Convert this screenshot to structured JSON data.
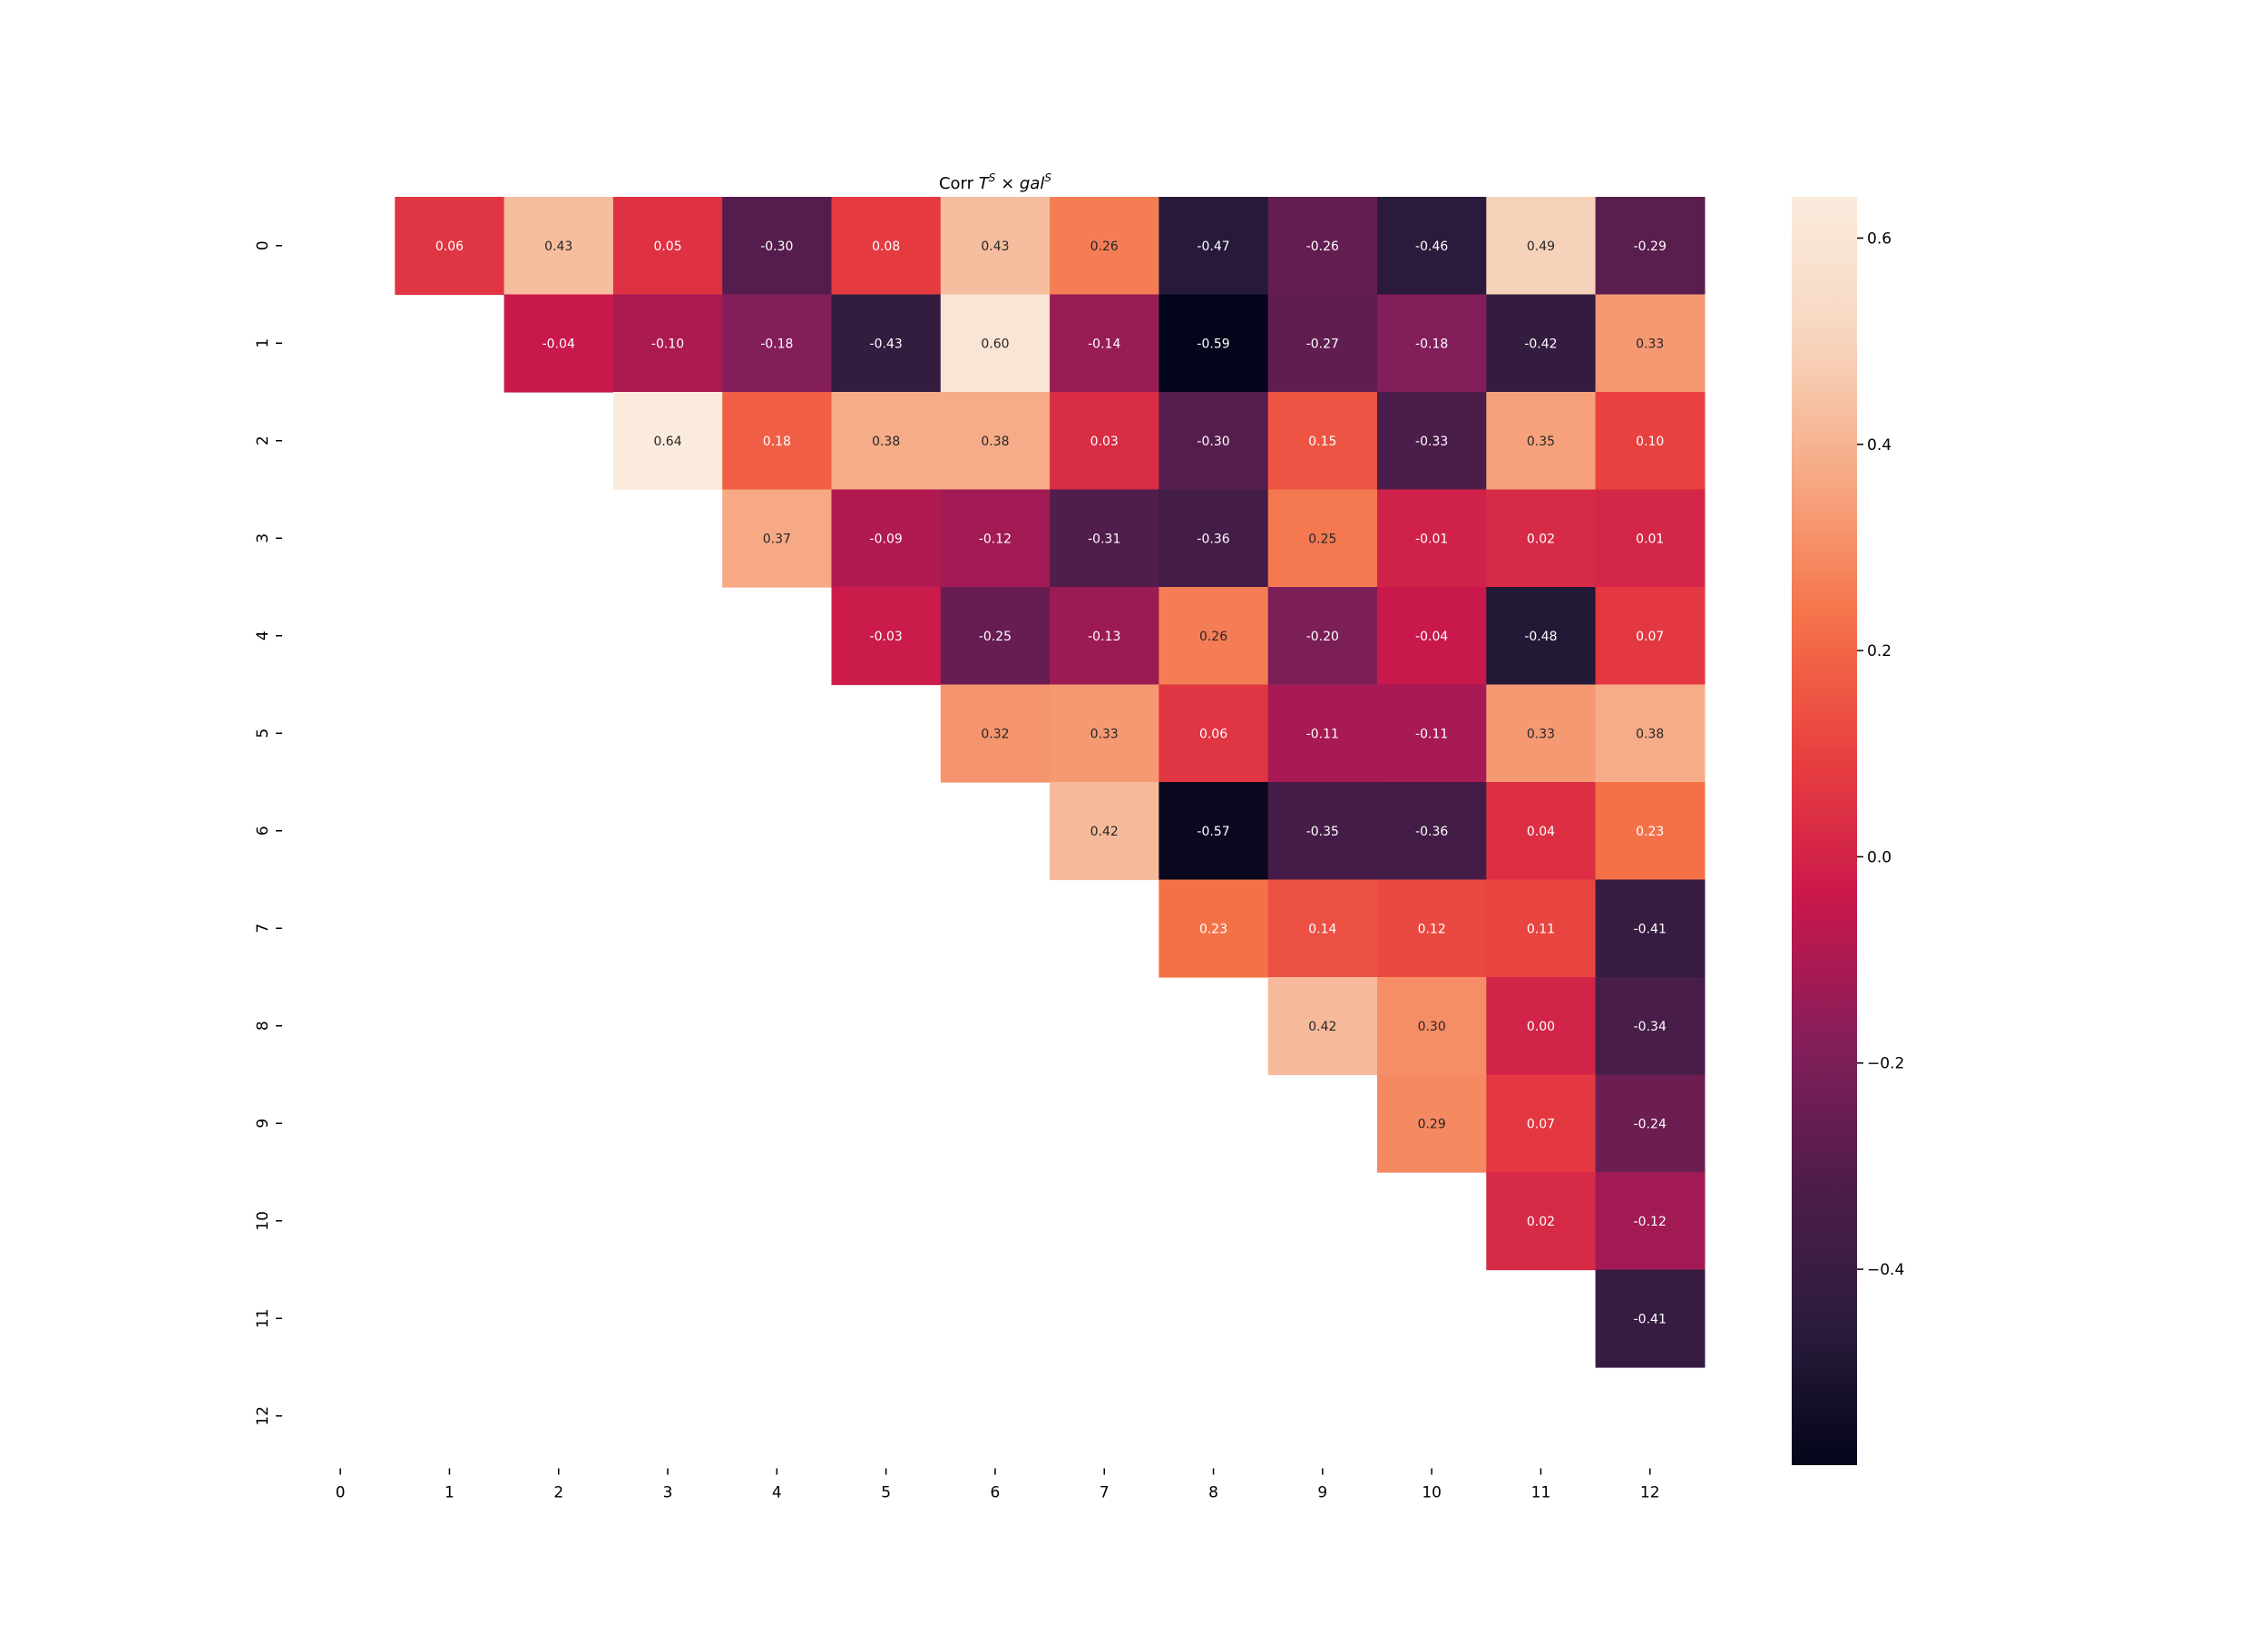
{
  "chart_data": {
    "type": "heatmap",
    "title": "Corr T^S × gal^S",
    "title_parts": {
      "corr": "Corr ",
      "t": "T",
      "s1": "S",
      "times": " × ",
      "gal": "gal",
      "s2": "S"
    },
    "x_labels": [
      "0",
      "1",
      "2",
      "3",
      "4",
      "5",
      "6",
      "7",
      "8",
      "9",
      "10",
      "11",
      "12"
    ],
    "y_labels": [
      "0",
      "1",
      "2",
      "3",
      "4",
      "5",
      "6",
      "7",
      "8",
      "9",
      "10",
      "11",
      "12"
    ],
    "mask": "upper triangle only (column > row); diagonal and lower triangle empty",
    "values": [
      [
        null,
        0.06,
        0.43,
        0.05,
        -0.3,
        0.08,
        0.43,
        0.26,
        -0.47,
        -0.26,
        -0.46,
        0.49,
        -0.29
      ],
      [
        null,
        null,
        -0.04,
        -0.1,
        -0.18,
        -0.43,
        0.6,
        -0.14,
        -0.59,
        -0.27,
        -0.18,
        -0.42,
        0.33
      ],
      [
        null,
        null,
        null,
        0.64,
        0.18,
        0.38,
        0.38,
        0.03,
        -0.3,
        0.15,
        -0.33,
        0.35,
        0.1
      ],
      [
        null,
        null,
        null,
        null,
        0.37,
        -0.09,
        -0.12,
        -0.31,
        -0.36,
        0.25,
        -0.01,
        0.02,
        0.01
      ],
      [
        null,
        null,
        null,
        null,
        null,
        -0.03,
        -0.25,
        -0.13,
        0.26,
        -0.2,
        -0.04,
        -0.48,
        0.07
      ],
      [
        null,
        null,
        null,
        null,
        null,
        null,
        0.32,
        0.33,
        0.06,
        -0.11,
        -0.11,
        0.33,
        0.38
      ],
      [
        null,
        null,
        null,
        null,
        null,
        null,
        null,
        0.42,
        -0.57,
        -0.35,
        -0.36,
        0.04,
        0.23
      ],
      [
        null,
        null,
        null,
        null,
        null,
        null,
        null,
        null,
        0.23,
        0.14,
        0.12,
        0.11,
        -0.41
      ],
      [
        null,
        null,
        null,
        null,
        null,
        null,
        null,
        null,
        null,
        0.42,
        0.3,
        0.0,
        -0.34
      ],
      [
        null,
        null,
        null,
        null,
        null,
        null,
        null,
        null,
        null,
        null,
        0.29,
        0.07,
        -0.24
      ],
      [
        null,
        null,
        null,
        null,
        null,
        null,
        null,
        null,
        null,
        null,
        null,
        0.02,
        -0.12
      ],
      [
        null,
        null,
        null,
        null,
        null,
        null,
        null,
        null,
        null,
        null,
        null,
        null,
        -0.41
      ],
      [
        null,
        null,
        null,
        null,
        null,
        null,
        null,
        null,
        null,
        null,
        null,
        null,
        null
      ]
    ],
    "colormap": "rocket",
    "vmin": -0.59,
    "vmax": 0.64,
    "colorbar_ticks": [
      0.6,
      0.4,
      0.2,
      0.0,
      -0.2,
      -0.4
    ],
    "colorbar_tick_labels": [
      "0.6",
      "0.4",
      "0.2",
      "0.0",
      "−0.2",
      "−0.4"
    ],
    "annotations": "cell values shown with two decimals"
  },
  "colors": {
    "rocket_stops": [
      "#03051a",
      "#2c1c3e",
      "#4e1d4b",
      "#841e5a",
      "#c8174c",
      "#e83f3f",
      "#f47148",
      "#f6a882",
      "#f7d6c0",
      "#faebdd"
    ]
  }
}
